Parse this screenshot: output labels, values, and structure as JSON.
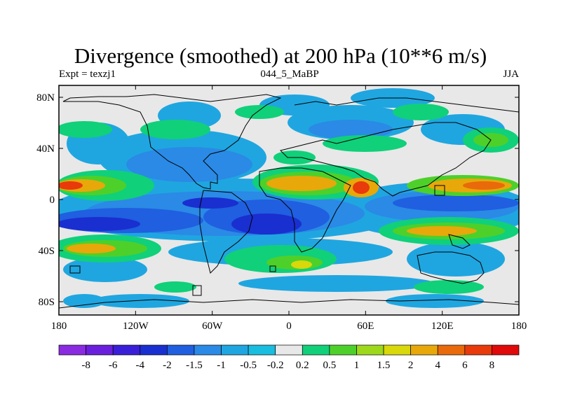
{
  "title": "Divergence (smoothed) at 200 hPa (10**6 m/s)",
  "left_label": "Expt = texzj1",
  "center_label": "044_5_MaBP",
  "right_label": "JJA",
  "latitude_ticks": [
    "80N",
    "40N",
    "0",
    "40S",
    "80S"
  ],
  "longitude_ticks": [
    "180",
    "120W",
    "60W",
    "0",
    "60E",
    "120E",
    "180"
  ],
  "colorbar": {
    "labels": [
      "-8",
      "-6",
      "-4",
      "-2",
      "-1.5",
      "-1",
      "-0.5",
      "-0.2",
      "0.2",
      "0.5",
      "1",
      "1.5",
      "2",
      "4",
      "6",
      "8"
    ],
    "colors": [
      "#8a2be2",
      "#6a1fdc",
      "#3a1fd8",
      "#1a2fd0",
      "#1f5fe0",
      "#2a8ae6",
      "#1fa6e0",
      "#19bde0",
      "#e8e8e8",
      "#10d07a",
      "#4ed02a",
      "#9ed81a",
      "#d8d80a",
      "#e8a80a",
      "#e86a0a",
      "#e83a0a",
      "#e00a0a"
    ]
  },
  "colors": {
    "strong_negative": "#1a2fd0",
    "negative": "#2a8ae6",
    "weak_negative": "#19bde0",
    "neutral": "#e8e8e8",
    "weak_positive": "#10d07a",
    "positive": "#4ed02a",
    "moderate_positive": "#d8d80a",
    "strong_positive": "#e8a80a",
    "very_strong_positive": "#e83a0a"
  }
}
